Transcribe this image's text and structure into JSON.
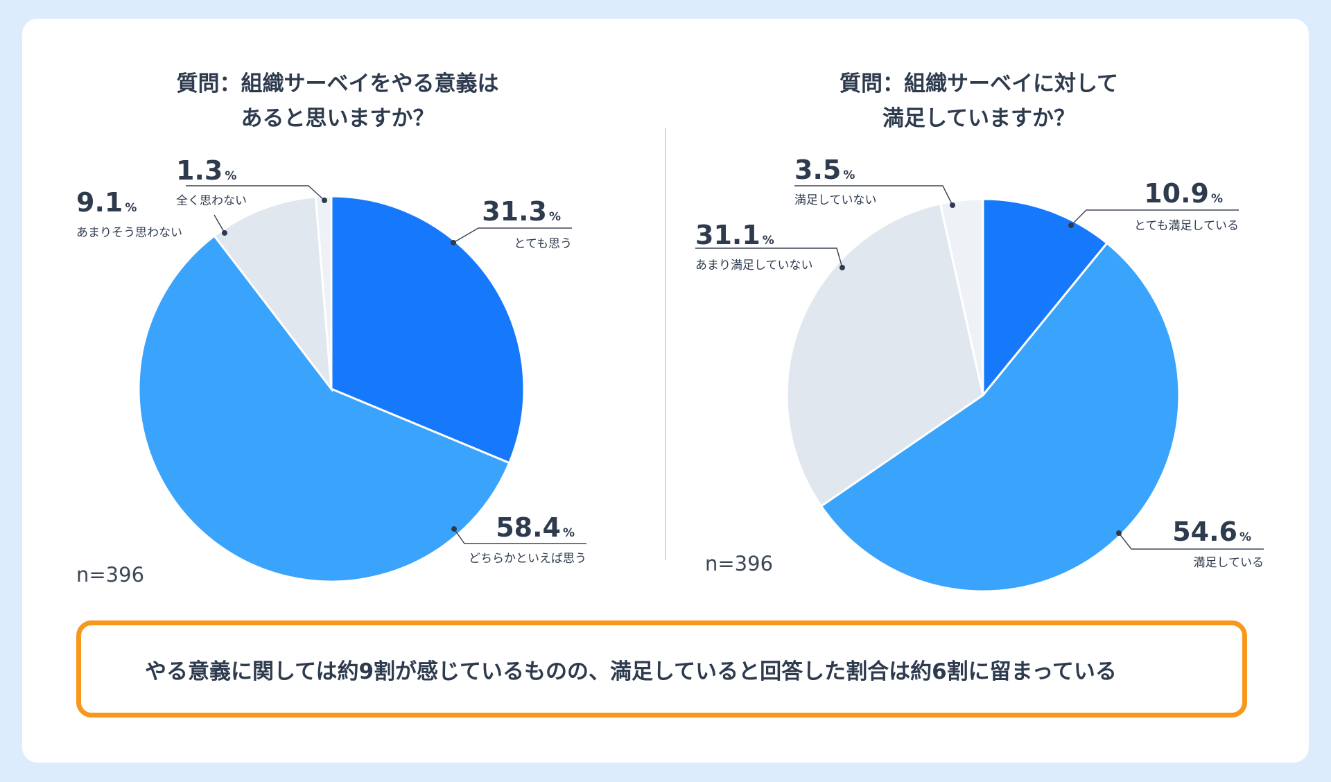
{
  "colors": {
    "page_bg": "#dcecfc",
    "card_bg": "#ffffff",
    "text": "#2e3b4e",
    "accent_border": "#f7981d",
    "divider": "#c9ced6"
  },
  "chart_data": [
    {
      "type": "pie",
      "title_lines": [
        "質問：組織サーベイをやる意義は",
        "あると思いますか？"
      ],
      "sample": "n=396",
      "unit": "%",
      "slices": [
        {
          "label": "とても思う",
          "value": 31.3,
          "value_text": "31.3",
          "color": "#1679fb"
        },
        {
          "label": "どちらかといえば思う",
          "value": 58.4,
          "value_text": "58.4",
          "color": "#3aa3fb"
        },
        {
          "label": "あまりそう思わない",
          "value": 9.1,
          "value_text": "9.1",
          "color": "#e1e7ef"
        },
        {
          "label": "全く思わない",
          "value": 1.3,
          "value_text": "1.3",
          "color": "#eef2f7"
        }
      ]
    },
    {
      "type": "pie",
      "title_lines": [
        "質問：組織サーベイに対して",
        "満足していますか？"
      ],
      "sample": "n=396",
      "unit": "%",
      "slices": [
        {
          "label": "とても満足している",
          "value": 10.9,
          "value_text": "10.9",
          "color": "#1679fb"
        },
        {
          "label": "満足している",
          "value": 54.6,
          "value_text": "54.6",
          "color": "#3aa3fb"
        },
        {
          "label": "あまり満足していない",
          "value": 31.1,
          "value_text": "31.1",
          "color": "#e1e7ef"
        },
        {
          "label": "満足していない",
          "value": 3.5,
          "value_text": "3.5",
          "color": "#eef2f7"
        }
      ]
    }
  ],
  "conclusion": "やる意義に関しては約9割が感じているものの、満足していると回答した割合は約6割に留まっている"
}
